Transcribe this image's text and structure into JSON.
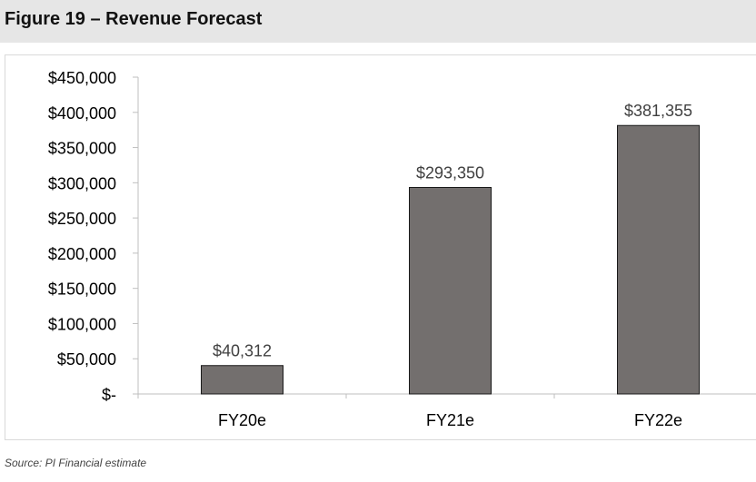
{
  "figure": {
    "title": "Figure 19 – Revenue Forecast",
    "source": "Source: PI Financial estimate"
  },
  "colors": {
    "bar": "#736f6e",
    "bar_outline": "#1a1a1a",
    "title_band": "#e6e6e6",
    "axis": "#bfbfbf",
    "text": "#000000",
    "label": "#404040"
  },
  "chart_data": {
    "type": "bar",
    "categories": [
      "FY20e",
      "FY21e",
      "FY22e"
    ],
    "values": [
      40312,
      293350,
      381355
    ],
    "data_labels": [
      "$40,312",
      "$293,350",
      "$381,355"
    ],
    "ylim": [
      0,
      450000
    ],
    "yticks": [
      0,
      50000,
      100000,
      150000,
      200000,
      250000,
      300000,
      350000,
      400000,
      450000
    ],
    "ytick_labels": [
      "$-",
      "$50,000",
      "$100,000",
      "$150,000",
      "$200,000",
      "$250,000",
      "$300,000",
      "$350,000",
      "$400,000",
      "$450,000"
    ],
    "grid": false,
    "legend": "none"
  }
}
